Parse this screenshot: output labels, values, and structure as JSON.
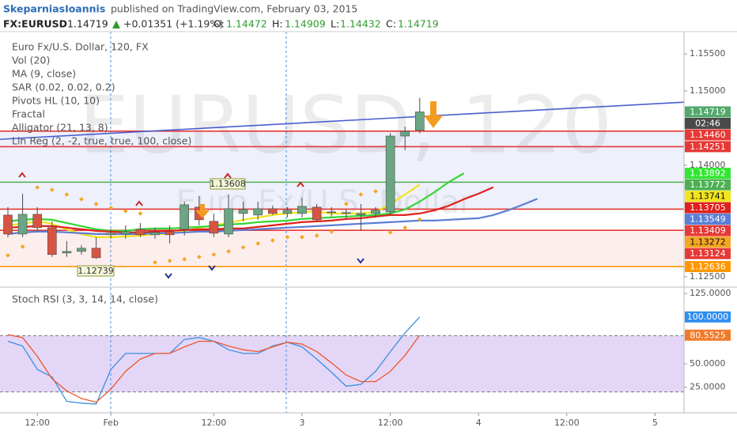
{
  "header": {
    "author": "SkeparniasIoannis",
    "byline": "published on TradingView.com, February 03, 2015",
    "symbol": "FX:EURUSD",
    "last": "1.14719",
    "change": "+0.01351 (+1.19%)",
    "open_label": "O:",
    "open": "1.14472",
    "high_label": "H:",
    "high": "1.14909",
    "low_label": "L:",
    "low": "1.14432",
    "close_label": "C:",
    "close": "1.14719"
  },
  "chart_data": [
    {
      "type": "candlestick",
      "title": "Euro Fx/U.S. Dollar, 120, FX",
      "watermark": "EURUSD, 120",
      "watermark_sub": "Euro Fx/U.S. Dollar",
      "indicators": [
        "Vol (20)",
        "MA (9, close)",
        "SAR (0.02, 0.02, 0.2)",
        "Pivots HL (10, 10)",
        "Fractal",
        "Alligator (21, 13, 8)",
        "Lin Reg (2, -2, true, true, 100, close)"
      ],
      "up_color": "#6ba583",
      "down_color": "#d75442",
      "categories": [
        null,
        null,
        null,
        null,
        null,
        null,
        null,
        null,
        null,
        null,
        null,
        null,
        null,
        null,
        null,
        null,
        null,
        null,
        null,
        null,
        null,
        null,
        null,
        null,
        null,
        null,
        null,
        null,
        null,
        null,
        null,
        null,
        null,
        null,
        null,
        null,
        null,
        null,
        null,
        null,
        null,
        null,
        null,
        null,
        null,
        null
      ],
      "open": [
        1.1333,
        1.13074,
        1.1334,
        1.1316,
        1.12819,
        1.1284,
        1.12883,
        1.13064,
        1.13074,
        1.13138,
        1.13064,
        1.13106,
        1.13138,
        1.13436,
        1.13245,
        1.13074,
        1.13351,
        1.1333,
        1.13415,
        1.13351,
        1.13351,
        1.13436,
        1.13372,
        1.13351,
        1.1333,
        1.13351,
        1.13372,
        1.14394,
        1.14472,
        null,
        null,
        null,
        null,
        null,
        null,
        null,
        null,
        null,
        null,
        null,
        null,
        null,
        null,
        null,
        null,
        null
      ],
      "high": [
        1.13436,
        1.13617,
        1.13436,
        1.13245,
        1.12979,
        1.12926,
        1.13032,
        1.13138,
        1.13191,
        1.13223,
        1.1316,
        1.13191,
        1.13511,
        1.13585,
        1.13351,
        1.13608,
        1.13511,
        1.13511,
        1.13457,
        1.13436,
        1.13564,
        1.13479,
        1.13436,
        1.13404,
        1.13479,
        1.13436,
        1.14436,
        1.14521,
        1.14909,
        null,
        null,
        null,
        null,
        null,
        null,
        null,
        null,
        null,
        null,
        null,
        null,
        null,
        null,
        null,
        null,
        null
      ],
      "low": [
        1.13032,
        1.13032,
        1.13117,
        1.12766,
        1.12766,
        1.12798,
        1.12739,
        1.13011,
        1.13011,
        1.13032,
        1.13011,
        1.12947,
        1.13053,
        1.13191,
        1.13032,
        1.13032,
        1.13245,
        1.13266,
        1.1333,
        1.13298,
        1.13298,
        1.13245,
        1.13309,
        1.13287,
        1.13117,
        1.13298,
        1.1333,
        1.14202,
        1.14432,
        null,
        null,
        null,
        null,
        null,
        null,
        null,
        null,
        null,
        null,
        null,
        null,
        null,
        null,
        null,
        null,
        null
      ],
      "close": [
        1.13074,
        1.1334,
        1.1316,
        1.12798,
        1.1284,
        1.12883,
        1.12755,
        1.13085,
        1.13106,
        1.13064,
        1.13096,
        1.13064,
        1.13468,
        1.13266,
        1.13085,
        1.13415,
        1.13404,
        1.13415,
        1.13351,
        1.13394,
        1.13447,
        1.13266,
        1.13372,
        1.13362,
        1.13351,
        1.13394,
        1.14394,
        1.14457,
        1.14719,
        null,
        null,
        null,
        null,
        null,
        null,
        null,
        null,
        null,
        null,
        null,
        null,
        null,
        null,
        null,
        null,
        null
      ],
      "series": [
        {
          "type": "line",
          "color": "#f2e41c",
          "values": [
            1.13191,
            1.13213,
            1.13245,
            1.13213,
            1.13138,
            1.13074,
            1.13032,
            1.13032,
            1.13043,
            1.13053,
            1.13074,
            1.13074,
            1.13117,
            1.1316,
            1.13191,
            1.13223,
            1.13266,
            1.13298,
            1.1333,
            1.13351,
            1.13372,
            1.13372,
            1.13351,
            1.13351,
            1.13351,
            1.13372,
            1.13479,
            1.13606,
            1.13741,
            null,
            null,
            null,
            null,
            null,
            null,
            null,
            null,
            null,
            null,
            null,
            null,
            null,
            null,
            null,
            null,
            null
          ]
        },
        {
          "type": "line",
          "color": "#33d633",
          "values": [
            1.13245,
            1.13266,
            1.13277,
            1.13266,
            1.13223,
            1.13181,
            1.13138,
            1.13117,
            1.13117,
            1.13138,
            1.13149,
            1.13149,
            1.1316,
            1.1317,
            1.13181,
            1.13202,
            1.13213,
            1.13234,
            1.13245,
            1.13255,
            1.13277,
            1.13287,
            1.13298,
            1.13309,
            1.13319,
            1.1333,
            1.13351,
            1.13404,
            1.13511,
            1.13638,
            1.13777,
            1.13892,
            null,
            null,
            null,
            null,
            null,
            null,
            null,
            null,
            null,
            null,
            null,
            null,
            null,
            null
          ]
        },
        {
          "type": "line",
          "color": "#e0201b",
          "values": [
            1.1316,
            1.1317,
            1.13181,
            1.13181,
            1.1316,
            1.13138,
            1.13117,
            1.13106,
            1.13096,
            1.13096,
            1.13106,
            1.13117,
            1.13128,
            1.13138,
            1.13138,
            1.13149,
            1.13149,
            1.1317,
            1.13191,
            1.13213,
            1.13234,
            1.13245,
            1.13255,
            1.13277,
            1.13287,
            1.13309,
            1.1333,
            1.1333,
            1.13351,
            1.13394,
            1.13457,
            1.13543,
            1.13617,
            1.13705,
            null,
            null,
            null,
            null,
            null,
            null,
            null,
            null,
            null,
            null,
            null,
            null
          ]
        },
        {
          "type": "line",
          "color": "#5b7fd6",
          "values": [
            1.13074,
            1.13096,
            1.13106,
            1.13106,
            1.13096,
            1.13085,
            1.13074,
            1.13074,
            1.13074,
            1.13074,
            1.13085,
            1.13085,
            1.13096,
            1.13106,
            1.13106,
            1.13117,
            1.13128,
            1.13138,
            1.13149,
            1.1316,
            1.1317,
            1.13181,
            1.13191,
            1.13202,
            1.13213,
            1.13223,
            1.13234,
            1.13245,
            1.13255,
            1.13255,
            1.13266,
            1.13277,
            1.13287,
            1.1333,
            1.13394,
            1.13468,
            1.13549,
            null,
            null,
            null,
            null,
            null,
            null,
            null,
            null,
            null
          ]
        },
        {
          "type": "scatter",
          "color": "#f5a623",
          "values": [
            1.12787,
            1.12904,
            1.13702,
            1.1367,
            1.13606,
            1.13543,
            1.13479,
            1.13426,
            1.13383,
            1.13351,
            1.12691,
            1.12713,
            1.12734,
            1.12766,
            1.12798,
            1.1284,
            1.12894,
            1.12947,
            1.12989,
            1.13032,
            1.13032,
            1.13053,
            1.13106,
            1.13479,
            1.13606,
            1.13649,
            1.13096,
            1.1316,
            1.13272,
            null,
            null,
            null,
            null,
            null,
            null,
            null,
            null,
            null,
            null,
            null,
            null,
            null,
            null,
            null,
            null,
            null
          ]
        }
      ],
      "levels": [
        {
          "value": 1.1446,
          "color": "#e53935"
        },
        {
          "value": 1.14251,
          "color": "#e53935"
        },
        {
          "value": 1.13772,
          "color": "#4caf50"
        },
        {
          "value": 1.13409,
          "color": "#e53935"
        },
        {
          "value": 1.13124,
          "color": "#e53935"
        },
        {
          "value": 1.12636,
          "color": "#ff9800"
        }
      ],
      "linreg": [
        1.1435,
        1.1485
      ],
      "price_labels": [
        {
          "value": 1.14719,
          "label": "1.14719",
          "color": "#53a86b"
        },
        {
          "value": 1.1446,
          "label": "1.14460",
          "color": "#e53935"
        },
        {
          "value": 1.14251,
          "label": "1.14251",
          "color": "#e53935"
        },
        {
          "value": 1.13892,
          "label": "1.13892",
          "color": "#33e633"
        },
        {
          "value": 1.13772,
          "label": "1.13772",
          "color": "#4caf50"
        },
        {
          "value": 1.13741,
          "label": "1.13741",
          "color": "#f2e41c"
        },
        {
          "value": 1.13705,
          "label": "1.13705",
          "color": "#e0201b"
        },
        {
          "value": 1.13549,
          "label": "1.13549",
          "color": "#5b7fd6"
        },
        {
          "value": 1.13409,
          "label": "1.13409",
          "color": "#e53935"
        },
        {
          "value": 1.13272,
          "label": "1.13272",
          "color": "#f5a623"
        },
        {
          "value": 1.13124,
          "label": "1.13124",
          "color": "#e53935"
        },
        {
          "value": 1.12636,
          "label": "1.12636",
          "color": "#ff9800"
        }
      ],
      "countdown": "02:46",
      "annotations": [
        "1.13608",
        "1.12739"
      ],
      "ylim": [
        1.1237,
        1.158
      ],
      "yticks": [
        {
          "value": 1.155,
          "label": "1.15500"
        },
        {
          "value": 1.15,
          "label": "1.15000"
        },
        {
          "value": 1.14,
          "label": "1.14000"
        },
        {
          "value": 1.125,
          "label": "1.12500"
        }
      ]
    },
    {
      "type": "line",
      "title": "Stoch RSI (3, 3, 14, 14, close)",
      "categories": [
        null,
        null,
        null,
        null,
        null,
        null,
        null,
        null,
        null,
        null,
        null,
        null,
        null,
        null,
        null,
        null,
        null,
        null,
        null,
        null,
        null,
        null,
        null,
        null,
        null,
        null,
        null,
        null,
        null,
        null,
        null,
        null,
        null,
        null,
        null,
        null,
        null,
        null,
        null,
        null,
        null,
        null,
        null,
        null,
        null,
        null
      ],
      "series": [
        {
          "color": "#3d8fdf",
          "values": [
            74,
            69,
            44,
            36,
            10,
            8,
            7,
            44,
            61,
            61,
            61,
            61,
            76,
            78,
            74,
            65,
            61,
            61,
            69,
            73,
            68,
            55,
            41,
            26,
            28,
            42,
            63,
            83,
            100,
            null,
            null,
            null,
            null,
            null,
            null,
            null,
            null,
            null,
            null,
            null,
            null,
            null,
            null,
            null,
            null,
            null
          ]
        },
        {
          "color": "#f0562a",
          "values": [
            81,
            78,
            58,
            34,
            21,
            13,
            9,
            23,
            42,
            55,
            61,
            61,
            68,
            74,
            74,
            69,
            65,
            63,
            68,
            73,
            71,
            63,
            51,
            38,
            31,
            31,
            42,
            59,
            80.5525,
            null,
            null,
            null,
            null,
            null,
            null,
            null,
            null,
            null,
            null,
            null,
            null,
            null,
            null,
            null,
            null,
            null
          ]
        }
      ],
      "hlines": [
        80,
        20
      ],
      "band_color": "#e3d6f7",
      "price_labels": [
        {
          "value": 100,
          "label": "100.0000",
          "color": "#2f8ff0"
        },
        {
          "value": 80.5525,
          "label": "80.5525",
          "color": "#f07a2a"
        }
      ],
      "ylim": [
        -1.5,
        131
      ],
      "yticks": [
        {
          "value": 125,
          "label": "125.0000"
        },
        {
          "value": 50,
          "label": "50.0000"
        },
        {
          "value": 25,
          "label": "25.0000"
        }
      ],
      "xticks": [
        {
          "value": 2,
          "label": "12:00"
        },
        {
          "value": 7,
          "label": "Feb"
        },
        {
          "value": 14,
          "label": "12:00"
        },
        {
          "value": 20,
          "label": "3"
        },
        {
          "value": 26,
          "label": "12:00"
        },
        {
          "value": 32,
          "label": "4"
        },
        {
          "value": 38,
          "label": "12:00"
        },
        {
          "value": 44,
          "label": "5"
        }
      ]
    }
  ]
}
